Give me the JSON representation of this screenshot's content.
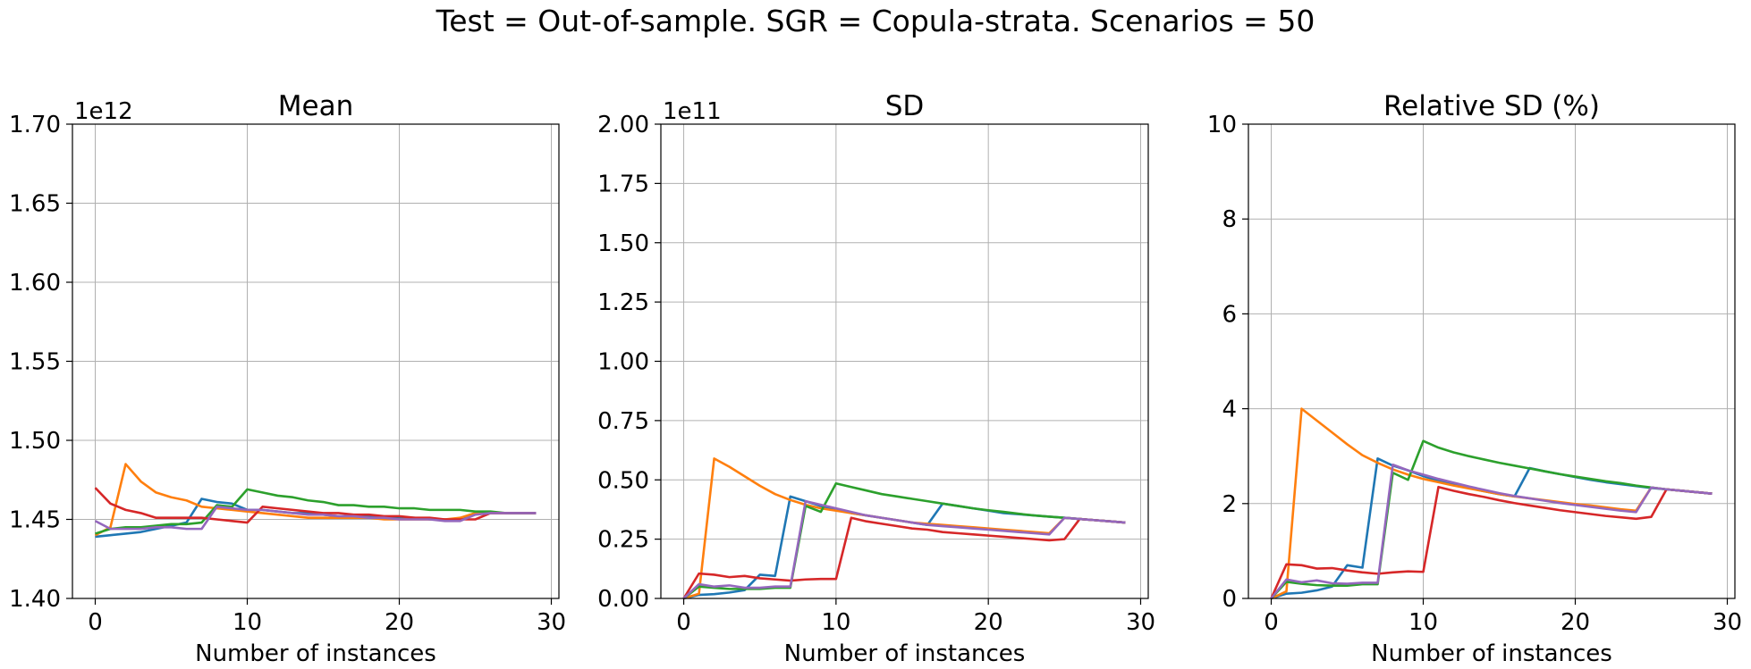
{
  "suptitle": "Test = Out-of-sample. SGR = Copula-strata. Scenarios = 50",
  "colors": [
    "#1f77b4",
    "#ff7f0e",
    "#2ca02c",
    "#d62728",
    "#9467bd"
  ],
  "chart_data": [
    {
      "type": "line",
      "title": "Mean",
      "xlabel": "Number of instances",
      "ylabel": "",
      "offset_text": "1e12",
      "xlim": [
        -1.5,
        30.5
      ],
      "ylim": [
        1.4,
        1.7
      ],
      "xticks": [
        0,
        10,
        20,
        30
      ],
      "xtick_labels": [
        "0",
        "10",
        "20",
        "30"
      ],
      "yticks": [
        1.4,
        1.45,
        1.5,
        1.55,
        1.6,
        1.65,
        1.7
      ],
      "ytick_labels": [
        "1.40",
        "1.45",
        "1.50",
        "1.55",
        "1.60",
        "1.65",
        "1.70"
      ],
      "grid": true,
      "x": [
        0,
        1,
        2,
        3,
        4,
        5,
        6,
        7,
        8,
        9,
        10,
        11,
        12,
        13,
        14,
        15,
        16,
        17,
        18,
        19,
        20,
        21,
        22,
        23,
        24,
        25,
        26,
        27,
        28,
        29
      ],
      "series": [
        {
          "values": [
            1.439,
            1.44,
            1.441,
            1.442,
            1.444,
            1.446,
            1.448,
            1.463,
            1.461,
            1.46,
            1.456,
            1.456,
            1.455,
            1.454,
            1.454,
            1.453,
            1.452,
            1.452,
            1.452,
            1.451,
            1.451,
            1.451,
            1.45,
            1.45,
            1.45,
            1.454,
            1.454,
            1.454,
            1.454,
            1.454
          ]
        },
        {
          "values": [
            1.44,
            1.445,
            1.485,
            1.474,
            1.467,
            1.464,
            1.462,
            1.458,
            1.457,
            1.456,
            1.455,
            1.454,
            1.453,
            1.452,
            1.451,
            1.451,
            1.451,
            1.451,
            1.451,
            1.45,
            1.45,
            1.45,
            1.45,
            1.45,
            1.451,
            1.454,
            1.454,
            1.454,
            1.454,
            1.454
          ]
        },
        {
          "values": [
            1.441,
            1.444,
            1.445,
            1.445,
            1.446,
            1.447,
            1.447,
            1.448,
            1.459,
            1.458,
            1.469,
            1.467,
            1.465,
            1.464,
            1.462,
            1.461,
            1.459,
            1.459,
            1.458,
            1.458,
            1.457,
            1.457,
            1.456,
            1.456,
            1.456,
            1.455,
            1.455,
            1.454,
            1.454,
            1.454
          ]
        },
        {
          "values": [
            1.47,
            1.46,
            1.456,
            1.454,
            1.451,
            1.451,
            1.451,
            1.451,
            1.45,
            1.449,
            1.448,
            1.458,
            1.457,
            1.456,
            1.455,
            1.454,
            1.454,
            1.453,
            1.453,
            1.452,
            1.452,
            1.451,
            1.451,
            1.45,
            1.45,
            1.45,
            1.454,
            1.454,
            1.454,
            1.454
          ]
        },
        {
          "values": [
            1.449,
            1.444,
            1.444,
            1.444,
            1.445,
            1.445,
            1.444,
            1.444,
            1.458,
            1.457,
            1.456,
            1.456,
            1.455,
            1.454,
            1.453,
            1.453,
            1.452,
            1.452,
            1.451,
            1.451,
            1.45,
            1.45,
            1.45,
            1.449,
            1.449,
            1.453,
            1.454,
            1.454,
            1.454,
            1.454
          ]
        }
      ]
    },
    {
      "type": "line",
      "title": "SD",
      "xlabel": "Number of instances",
      "ylabel": "",
      "offset_text": "1e11",
      "xlim": [
        -1.5,
        30.5
      ],
      "ylim": [
        0.0,
        2.0
      ],
      "xticks": [
        0,
        10,
        20,
        30
      ],
      "xtick_labels": [
        "0",
        "10",
        "20",
        "30"
      ],
      "yticks": [
        0.0,
        0.25,
        0.5,
        0.75,
        1.0,
        1.25,
        1.5,
        1.75,
        2.0
      ],
      "ytick_labels": [
        "0.00",
        "0.25",
        "0.50",
        "0.75",
        "1.00",
        "1.25",
        "1.50",
        "1.75",
        "2.00"
      ],
      "grid": true,
      "x": [
        0,
        1,
        2,
        3,
        4,
        5,
        6,
        7,
        8,
        9,
        10,
        11,
        12,
        13,
        14,
        15,
        16,
        17,
        18,
        19,
        20,
        21,
        22,
        23,
        24,
        25,
        26,
        27,
        28,
        29
      ],
      "series": [
        {
          "values": [
            0.0,
            0.015,
            0.018,
            0.025,
            0.035,
            0.1,
            0.095,
            0.43,
            0.41,
            0.39,
            0.375,
            0.36,
            0.35,
            0.34,
            0.33,
            0.32,
            0.31,
            0.4,
            0.39,
            0.38,
            0.37,
            0.36,
            0.355,
            0.35,
            0.345,
            0.34,
            0.335,
            0.33,
            0.325,
            0.32
          ]
        },
        {
          "values": [
            0.0,
            0.02,
            0.59,
            0.555,
            0.515,
            0.475,
            0.44,
            0.415,
            0.395,
            0.38,
            0.37,
            0.36,
            0.35,
            0.34,
            0.33,
            0.32,
            0.315,
            0.31,
            0.305,
            0.3,
            0.295,
            0.29,
            0.285,
            0.28,
            0.275,
            0.34,
            0.335,
            0.33,
            0.325,
            0.32
          ]
        },
        {
          "values": [
            0.0,
            0.05,
            0.045,
            0.04,
            0.04,
            0.04,
            0.045,
            0.045,
            0.39,
            0.365,
            0.485,
            0.47,
            0.455,
            0.44,
            0.43,
            0.42,
            0.41,
            0.4,
            0.39,
            0.38,
            0.372,
            0.365,
            0.357,
            0.35,
            0.345,
            0.34,
            0.335,
            0.33,
            0.325,
            0.32
          ]
        },
        {
          "values": [
            0.0,
            0.105,
            0.1,
            0.09,
            0.095,
            0.085,
            0.08,
            0.075,
            0.08,
            0.082,
            0.082,
            0.34,
            0.325,
            0.315,
            0.305,
            0.295,
            0.29,
            0.28,
            0.275,
            0.27,
            0.265,
            0.26,
            0.255,
            0.25,
            0.245,
            0.25,
            0.335,
            0.33,
            0.325,
            0.32
          ]
        },
        {
          "values": [
            0.0,
            0.06,
            0.05,
            0.055,
            0.045,
            0.045,
            0.05,
            0.05,
            0.41,
            0.395,
            0.38,
            0.365,
            0.35,
            0.34,
            0.33,
            0.32,
            0.31,
            0.305,
            0.3,
            0.295,
            0.29,
            0.285,
            0.28,
            0.275,
            0.27,
            0.34,
            0.335,
            0.33,
            0.325,
            0.32
          ]
        }
      ]
    },
    {
      "type": "line",
      "title": "Relative SD (%)",
      "xlabel": "Number of instances",
      "ylabel": "",
      "offset_text": "",
      "xlim": [
        -1.5,
        30.5
      ],
      "ylim": [
        0,
        10
      ],
      "xticks": [
        0,
        10,
        20,
        30
      ],
      "xtick_labels": [
        "0",
        "10",
        "20",
        "30"
      ],
      "yticks": [
        0,
        2,
        4,
        6,
        8,
        10
      ],
      "ytick_labels": [
        "0",
        "2",
        "4",
        "6",
        "8",
        "10"
      ],
      "grid": true,
      "x": [
        0,
        1,
        2,
        3,
        4,
        5,
        6,
        7,
        8,
        9,
        10,
        11,
        12,
        13,
        14,
        15,
        16,
        17,
        18,
        19,
        20,
        21,
        22,
        23,
        24,
        25,
        26,
        27,
        28,
        29
      ],
      "series": [
        {
          "values": [
            0.0,
            0.1,
            0.12,
            0.17,
            0.25,
            0.7,
            0.65,
            2.95,
            2.8,
            2.7,
            2.58,
            2.48,
            2.4,
            2.33,
            2.26,
            2.2,
            2.15,
            2.75,
            2.68,
            2.62,
            2.56,
            2.5,
            2.45,
            2.41,
            2.37,
            2.33,
            2.3,
            2.27,
            2.24,
            2.21
          ]
        },
        {
          "values": [
            0.0,
            0.15,
            4.0,
            3.75,
            3.5,
            3.25,
            3.02,
            2.86,
            2.72,
            2.61,
            2.52,
            2.45,
            2.38,
            2.32,
            2.26,
            2.2,
            2.15,
            2.11,
            2.07,
            2.03,
            1.99,
            1.96,
            1.92,
            1.88,
            1.85,
            2.34,
            2.3,
            2.27,
            2.24,
            2.21
          ]
        },
        {
          "values": [
            0.0,
            0.35,
            0.31,
            0.28,
            0.27,
            0.27,
            0.3,
            0.3,
            2.65,
            2.5,
            3.32,
            3.18,
            3.08,
            3.0,
            2.93,
            2.86,
            2.8,
            2.74,
            2.68,
            2.62,
            2.57,
            2.52,
            2.47,
            2.43,
            2.38,
            2.34,
            2.3,
            2.27,
            2.24,
            2.21
          ]
        },
        {
          "values": [
            0.0,
            0.72,
            0.7,
            0.63,
            0.64,
            0.59,
            0.55,
            0.52,
            0.55,
            0.57,
            0.56,
            2.35,
            2.27,
            2.2,
            2.14,
            2.07,
            2.01,
            1.96,
            1.91,
            1.86,
            1.82,
            1.78,
            1.74,
            1.71,
            1.68,
            1.72,
            2.3,
            2.27,
            2.24,
            2.21
          ]
        },
        {
          "values": [
            0.0,
            0.4,
            0.34,
            0.38,
            0.32,
            0.31,
            0.33,
            0.33,
            2.82,
            2.7,
            2.61,
            2.52,
            2.44,
            2.36,
            2.29,
            2.22,
            2.16,
            2.11,
            2.06,
            2.01,
            1.97,
            1.93,
            1.89,
            1.85,
            1.82,
            2.34,
            2.3,
            2.27,
            2.24,
            2.21
          ]
        }
      ]
    }
  ]
}
